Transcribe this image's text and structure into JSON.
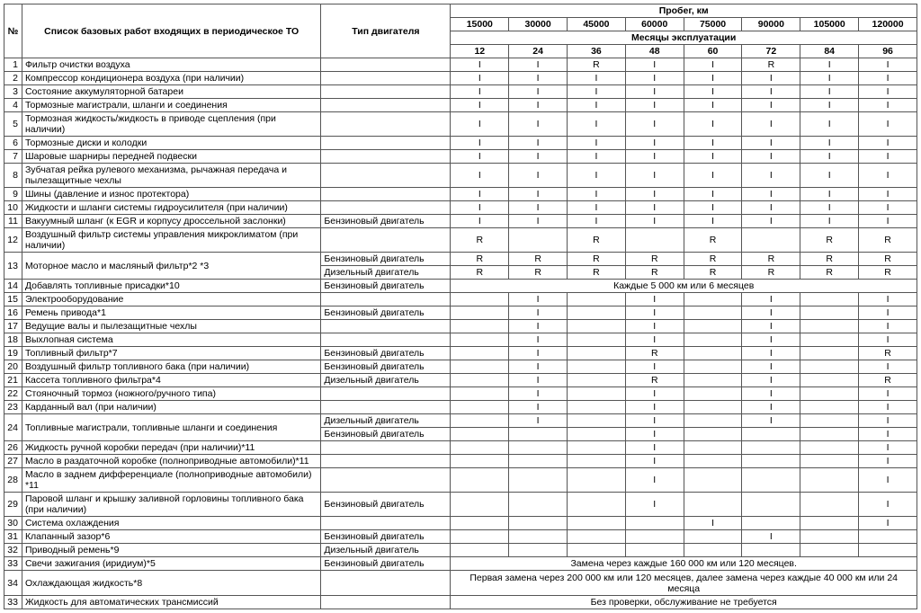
{
  "header": {
    "num": "№",
    "desc": "Список базовых работ входящих в периодическое ТО",
    "eng": "Тип двигателя",
    "mileage_group": "Пробег, км",
    "months_group": "Месяцы эксплуатации",
    "mileage": [
      "15000",
      "30000",
      "45000",
      "60000",
      "75000",
      "90000",
      "105000",
      "120000"
    ],
    "months": [
      "12",
      "24",
      "36",
      "48",
      "60",
      "72",
      "84",
      "96"
    ]
  },
  "engine": {
    "petrol": "Бензиновый двигатель",
    "diesel": "Дизельный двигатель"
  },
  "notes": {
    "every5000": "Каждые 5 000 км или 6 месяцев",
    "plugs": "Замена через каждые 160 000 км или 120 месяцев.",
    "coolant": "Первая замена через 200 000 км или 120 месяцев, далее замена через каждые 40 000 км или 24 месяца",
    "atf": "Без проверки, обслуживание не требуется"
  },
  "rows": [
    {
      "n": "1",
      "d": "Фильтр очистки воздуха",
      "e": "",
      "v": [
        "I",
        "I",
        "R",
        "I",
        "I",
        "R",
        "I",
        "I"
      ]
    },
    {
      "n": "2",
      "d": "Компрессор кондиционера воздуха (при наличии)",
      "e": "",
      "v": [
        "I",
        "I",
        "I",
        "I",
        "I",
        "I",
        "I",
        "I"
      ]
    },
    {
      "n": "3",
      "d": "Состояние аккумуляторной батареи",
      "e": "",
      "v": [
        "I",
        "I",
        "I",
        "I",
        "I",
        "I",
        "I",
        "I"
      ]
    },
    {
      "n": "4",
      "d": "Тормозные магистрали, шланги и соединения",
      "e": "",
      "v": [
        "I",
        "I",
        "I",
        "I",
        "I",
        "I",
        "I",
        "I"
      ]
    },
    {
      "n": "5",
      "d": "Тормозная жидкость/жидкость в приводе сцепления (при наличии)",
      "e": "",
      "v": [
        "I",
        "I",
        "I",
        "I",
        "I",
        "I",
        "I",
        "I"
      ]
    },
    {
      "n": "6",
      "d": "Тормозные диски и колодки",
      "e": "",
      "v": [
        "I",
        "I",
        "I",
        "I",
        "I",
        "I",
        "I",
        "I"
      ]
    },
    {
      "n": "7",
      "d": "Шаровые шарниры передней подвески",
      "e": "",
      "v": [
        "I",
        "I",
        "I",
        "I",
        "I",
        "I",
        "I",
        "I"
      ]
    },
    {
      "n": "8",
      "d": "Зубчатая рейка рулевого механизма, рычажная передача и пылезащитные чехлы",
      "e": "",
      "v": [
        "I",
        "I",
        "I",
        "I",
        "I",
        "I",
        "I",
        "I"
      ]
    },
    {
      "n": "9",
      "d": "Шины (давление и износ протектора)",
      "e": "",
      "v": [
        "I",
        "I",
        "I",
        "I",
        "I",
        "I",
        "I",
        "I"
      ]
    },
    {
      "n": "10",
      "d": "Жидкости и шланги системы гидроусилителя (при наличии)",
      "e": "",
      "v": [
        "I",
        "I",
        "I",
        "I",
        "I",
        "I",
        "I",
        "I"
      ]
    },
    {
      "n": "11",
      "d": "Вакуумный шланг (к EGR и корпусу дроссельной заслонки)",
      "e": "petrol",
      "v": [
        "I",
        "I",
        "I",
        "I",
        "I",
        "I",
        "I",
        "I"
      ]
    },
    {
      "n": "12",
      "d": "Воздушный фильтр системы управления микроклиматом (при наличии)",
      "e": "",
      "v": [
        "R",
        "",
        "R",
        "",
        "R",
        "",
        "R",
        "R"
      ]
    },
    {
      "n": "13",
      "d": "Моторное масло и масляный фильтр*2 *3",
      "e": "petrol",
      "v": [
        "R",
        "R",
        "R",
        "R",
        "R",
        "R",
        "R",
        "R"
      ],
      "sub": {
        "e": "diesel",
        "v": [
          "R",
          "R",
          "R",
          "R",
          "R",
          "R",
          "R",
          "R"
        ]
      }
    },
    {
      "n": "14",
      "d": "Добавлять топливные присадки*10",
      "e": "petrol",
      "span": "every5000"
    },
    {
      "n": "15",
      "d": "Электрооборудование",
      "e": "",
      "v": [
        "",
        "I",
        "",
        "I",
        "",
        "I",
        "",
        "I"
      ]
    },
    {
      "n": "16",
      "d": "Ремень привода*1",
      "e": "petrol",
      "v": [
        "",
        "I",
        "",
        "I",
        "",
        "I",
        "",
        "I"
      ]
    },
    {
      "n": "17",
      "d": "Ведущие валы и пылезащитные чехлы",
      "e": "",
      "v": [
        "",
        "I",
        "",
        "I",
        "",
        "I",
        "",
        "I"
      ]
    },
    {
      "n": "18",
      "d": "Выхлопная система",
      "e": "",
      "v": [
        "",
        "I",
        "",
        "I",
        "",
        "I",
        "",
        "I"
      ]
    },
    {
      "n": "19",
      "d": "Топливный фильтр*7",
      "e": "petrol",
      "v": [
        "",
        "I",
        "",
        "R",
        "",
        "I",
        "",
        "R"
      ]
    },
    {
      "n": "20",
      "d": "Воздушный фильтр топливного бака (при наличии)",
      "e": "petrol",
      "v": [
        "",
        "I",
        "",
        "I",
        "",
        "I",
        "",
        "I"
      ]
    },
    {
      "n": "21",
      "d": "Кассета топливного фильтра*4",
      "e": "diesel",
      "v": [
        "",
        "I",
        "",
        "R",
        "",
        "I",
        "",
        "R"
      ]
    },
    {
      "n": "22",
      "d": "Стояночный тормоз (ножного/ручного типа)",
      "e": "",
      "v": [
        "",
        "I",
        "",
        "I",
        "",
        "I",
        "",
        "I"
      ]
    },
    {
      "n": "23",
      "d": "Карданный вал (при наличии)",
      "e": "",
      "v": [
        "",
        "I",
        "",
        "I",
        "",
        "I",
        "",
        "I"
      ]
    },
    {
      "n": "24",
      "d": "Топливные магистрали, топливные шланги и соединения",
      "e": "diesel",
      "v": [
        "",
        "I",
        "",
        "I",
        "",
        "I",
        "",
        "I"
      ],
      "sub": {
        "e": "petrol",
        "v": [
          "",
          "",
          "",
          "I",
          "",
          "",
          "",
          "I"
        ]
      }
    },
    {
      "n": "26",
      "d": "Жидкость ручной коробки передач (при наличии)*11",
      "e": "",
      "v": [
        "",
        "",
        "",
        "I",
        "",
        "",
        "",
        "I"
      ]
    },
    {
      "n": "27",
      "d": "Масло в раздаточной коробке (полноприводные автомобили)*11",
      "e": "",
      "v": [
        "",
        "",
        "",
        "I",
        "",
        "",
        "",
        "I"
      ]
    },
    {
      "n": "28",
      "d": "Масло в заднем дифференциале (полноприводные автомобили) *11",
      "e": "",
      "v": [
        "",
        "",
        "",
        "I",
        "",
        "",
        "",
        "I"
      ]
    },
    {
      "n": "29",
      "d": "Паровой шланг и крышку заливной горловины топливного бака (при наличии)",
      "e": "petrol",
      "v": [
        "",
        "",
        "",
        "I",
        "",
        "",
        "",
        "I"
      ]
    },
    {
      "n": "30",
      "d": "Система охлаждения",
      "e": "",
      "v": [
        "",
        "",
        "",
        "",
        "I",
        "",
        "",
        "I"
      ]
    },
    {
      "n": "31",
      "d": "Клапанный зазор*6",
      "e": "petrol",
      "v": [
        "",
        "",
        "",
        "",
        "",
        "I",
        "",
        ""
      ]
    },
    {
      "n": "32",
      "d": "Приводный ремень*9",
      "e": "diesel",
      "v": [
        "",
        "",
        "",
        "",
        "",
        "",
        "",
        ""
      ]
    },
    {
      "n": "33",
      "d": "Свечи зажигания (иридиум)*5",
      "e": "petrol",
      "span": "plugs"
    },
    {
      "n": "34",
      "d": "Охлаждающая жидкость*8",
      "e": "",
      "span": "coolant",
      "tall": true
    },
    {
      "n": "33",
      "d": "Жидкость для автоматических трансмиссий",
      "e": "",
      "span": "atf"
    }
  ]
}
